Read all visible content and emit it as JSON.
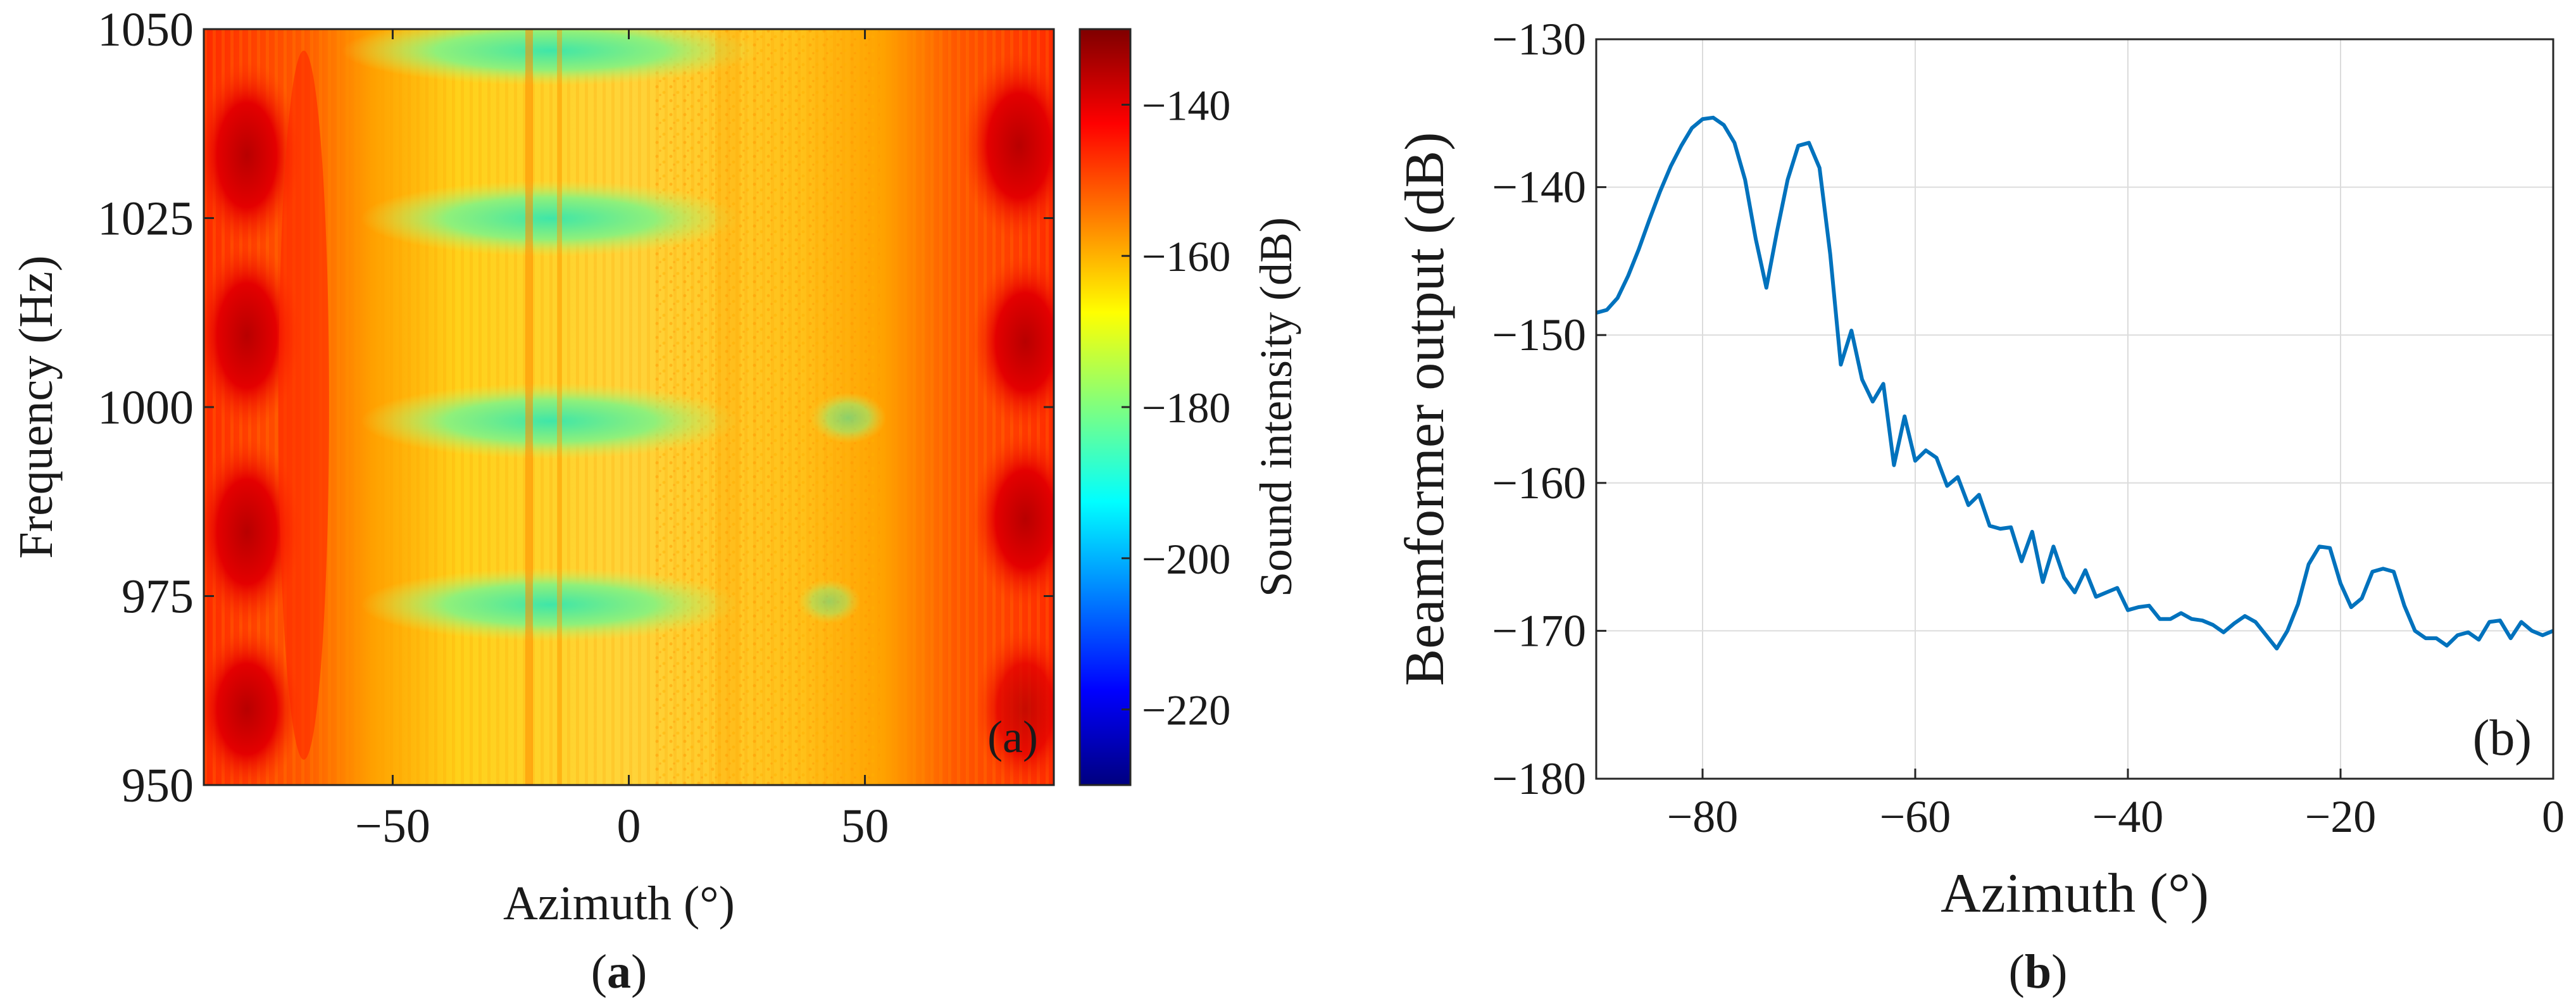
{
  "chart_data": [
    {
      "type": "heatmap",
      "panel_label": "(a)",
      "caption_letter": "a",
      "xlabel": "Azimuth (°)",
      "ylabel": "Frequency (Hz)",
      "xlim": [
        -90,
        90
      ],
      "ylim": [
        950,
        1050
      ],
      "xticks": [
        -50,
        0,
        50
      ],
      "xtick_labels": [
        "−50",
        "0",
        "50"
      ],
      "yticks": [
        950,
        975,
        1000,
        1025,
        1050
      ],
      "ytick_labels": [
        "950",
        "975",
        "1000",
        "1025",
        "1050"
      ],
      "colorbar": {
        "label": "Sound intensity (dB)",
        "range": [
          -230,
          -130
        ],
        "ticks": [
          -220,
          -200,
          -180,
          -160,
          -140
        ],
        "tick_labels": [
          "−220",
          "−200",
          "−180",
          "−160",
          "−140"
        ],
        "colors": [
          "#00007f",
          "#0000ff",
          "#007fff",
          "#00ffff",
          "#7fff7f",
          "#ffff00",
          "#ff7f00",
          "#ff0000",
          "#7f0000"
        ]
      }
    },
    {
      "type": "line",
      "panel_label": "(b)",
      "caption_letter": "b",
      "xlabel": "Azimuth (°)",
      "ylabel": "Beamformer output (dB)",
      "xlim": [
        -90,
        0
      ],
      "ylim": [
        -180,
        -130
      ],
      "xticks": [
        -80,
        -60,
        -40,
        -20,
        0
      ],
      "xtick_labels": [
        "−80",
        "−60",
        "−40",
        "−20",
        "0"
      ],
      "yticks": [
        -180,
        -170,
        -160,
        -150,
        -140,
        -130
      ],
      "ytick_labels": [
        "−180",
        "−170",
        "−160",
        "−150",
        "−140",
        "−130"
      ],
      "grid": true,
      "line_color": "#0072bd",
      "series": [
        {
          "name": "Beamformer output",
          "x": [
            -90,
            -89,
            -88,
            -87,
            -86,
            -85,
            -84,
            -83,
            -82,
            -81,
            -80,
            -79,
            -78,
            -77,
            -76,
            -75,
            -74,
            -73,
            -72,
            -71,
            -70,
            -69,
            -68,
            -67,
            -66,
            -65,
            -64,
            -63,
            -62,
            -61,
            -60,
            -59,
            -58,
            -57,
            -56,
            -55,
            -54,
            -53,
            -52,
            -51,
            -50,
            -49,
            -48,
            -47,
            -46,
            -45,
            -44,
            -43,
            -42,
            -41,
            -40,
            -39,
            -38,
            -37,
            -36,
            -35,
            -34,
            -33,
            -32,
            -31,
            -30,
            -29,
            -28,
            -27,
            -26,
            -25,
            -24,
            -23,
            -22,
            -21,
            -20,
            -19,
            -18,
            -17,
            -16,
            -15,
            -14,
            -13,
            -12,
            -11,
            -10,
            -9,
            -8,
            -7,
            -6,
            -5,
            -4,
            -3,
            -2,
            -1,
            0
          ],
          "values": [
            -148.5,
            -148.3,
            -147.5,
            -146.0,
            -144.2,
            -142.2,
            -140.3,
            -138.6,
            -137.2,
            -136.0,
            -135.4,
            -135.3,
            -135.8,
            -137.0,
            -139.5,
            -143.5,
            -146.8,
            -143.0,
            -139.5,
            -137.2,
            -137.0,
            -138.7,
            -144.5,
            -152.0,
            -149.7,
            -153.0,
            -154.5,
            -153.3,
            -158.8,
            -155.5,
            -158.5,
            -157.8,
            -158.3,
            -160.2,
            -159.6,
            -161.5,
            -160.8,
            -162.9,
            -163.1,
            -163.0,
            -165.3,
            -163.3,
            -166.7,
            -164.3,
            -166.4,
            -167.4,
            -165.9,
            -167.7,
            -167.4,
            -167.1,
            -168.6,
            -168.4,
            -168.3,
            -169.2,
            -169.2,
            -168.8,
            -169.2,
            -169.3,
            -169.6,
            -170.1,
            -169.5,
            -169.0,
            -169.4,
            -170.3,
            -171.2,
            -170.0,
            -168.2,
            -165.5,
            -164.3,
            -164.4,
            -166.8,
            -168.4,
            -167.8,
            -166.0,
            -165.8,
            -166.0,
            -168.3,
            -170.0,
            -170.5,
            -170.5,
            -171.0,
            -170.3,
            -170.1,
            -170.6,
            -169.4,
            -169.3,
            -170.5,
            -169.4,
            -170.0,
            -170.3,
            -170.0
          ]
        }
      ]
    }
  ]
}
